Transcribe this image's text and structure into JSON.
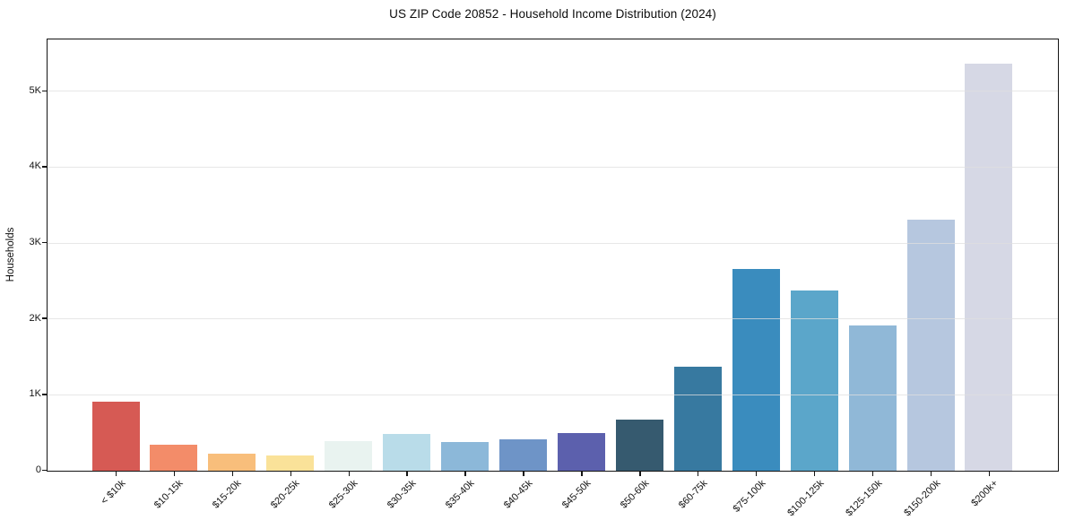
{
  "chart_data": {
    "type": "bar",
    "title": "US ZIP Code 20852 - Household Income Distribution (2024)",
    "xlabel": "",
    "ylabel": "Households",
    "categories": [
      "< $10k",
      "$10-15k",
      "$15-20k",
      "$20-25k",
      "$25-30k",
      "$30-35k",
      "$35-40k",
      "$40-45k",
      "$45-50k",
      "$50-60k",
      "$60-75k",
      "$75-100k",
      "$100-125k",
      "$125-150k",
      "$150-200k",
      "$200k+"
    ],
    "values": [
      910,
      345,
      220,
      205,
      390,
      480,
      375,
      410,
      500,
      670,
      1375,
      2660,
      2375,
      1910,
      3310,
      5360
    ],
    "bar_colors": [
      "#d65a54",
      "#f38c69",
      "#f8be7b",
      "#fae299",
      "#e9f3f0",
      "#b9dce9",
      "#8cb8d9",
      "#6e94c7",
      "#5c60ad",
      "#365a6f",
      "#3779a0",
      "#3a8cbe",
      "#5ba6ca",
      "#90b8d7",
      "#b6c7df",
      "#d6d8e5"
    ],
    "ylim": [
      0,
      5670
    ],
    "yticks": [
      {
        "value": 0,
        "label": "0"
      },
      {
        "value": 1000,
        "label": "1K"
      },
      {
        "value": 2000,
        "label": "2K"
      },
      {
        "value": 3000,
        "label": "3K"
      },
      {
        "value": 4000,
        "label": "4K"
      },
      {
        "value": 5000,
        "label": "5K"
      }
    ],
    "grid": "horizontal",
    "legend": "none",
    "background": "#ffffff"
  }
}
